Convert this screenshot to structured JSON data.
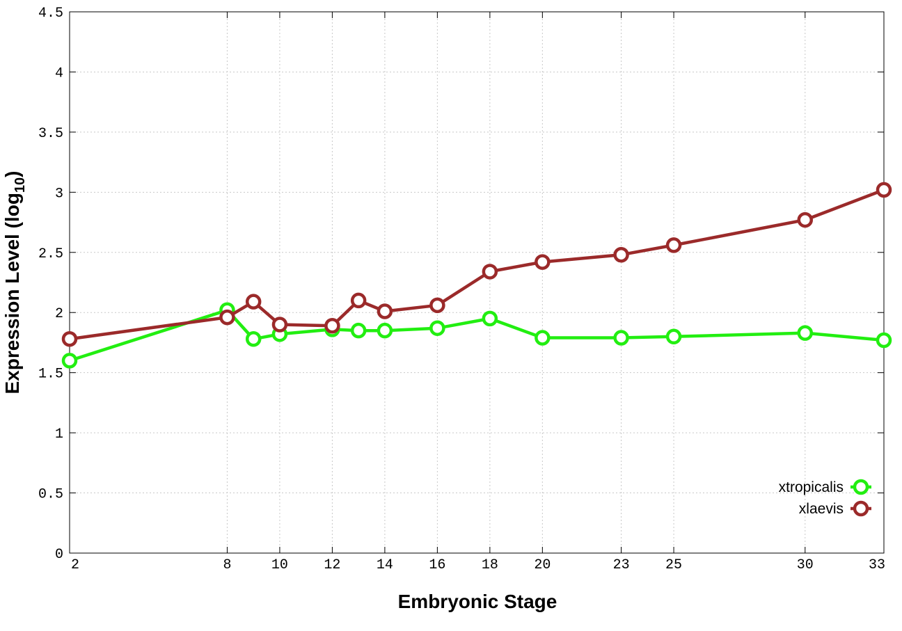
{
  "chart_data": {
    "type": "line",
    "xlabel": "Embryonic Stage",
    "ylabel_main": "Expression Level (log",
    "ylabel_sub": "10",
    "ylabel_close": ")",
    "x_stages": [
      "2",
      "8",
      "9",
      "10",
      "12",
      "13",
      "14",
      "16",
      "18",
      "20",
      "23",
      "25",
      "30",
      "33"
    ],
    "x_tick_labels": [
      "2",
      "8",
      "10",
      "12",
      "14",
      "16",
      "18",
      "20",
      "23",
      "25",
      "30",
      "33"
    ],
    "y_ticks": [
      "0",
      "0.5",
      "1",
      "1.5",
      "2",
      "2.5",
      "3",
      "3.5",
      "4",
      "4.5"
    ],
    "ylim": [
      0,
      4.5
    ],
    "grid": true,
    "legend_position": "bottom-right",
    "series": [
      {
        "name": "xtropicalis",
        "color": "#22ee11",
        "values": [
          1.6,
          2.02,
          1.78,
          1.82,
          1.86,
          1.85,
          1.85,
          1.87,
          1.95,
          1.79,
          1.79,
          1.8,
          1.83,
          1.77
        ]
      },
      {
        "name": "xlaevis",
        "color": "#9b2a2a",
        "values": [
          1.78,
          1.96,
          2.09,
          1.9,
          1.89,
          2.1,
          2.01,
          2.06,
          2.34,
          2.42,
          2.48,
          2.56,
          2.77,
          3.02
        ]
      }
    ]
  }
}
